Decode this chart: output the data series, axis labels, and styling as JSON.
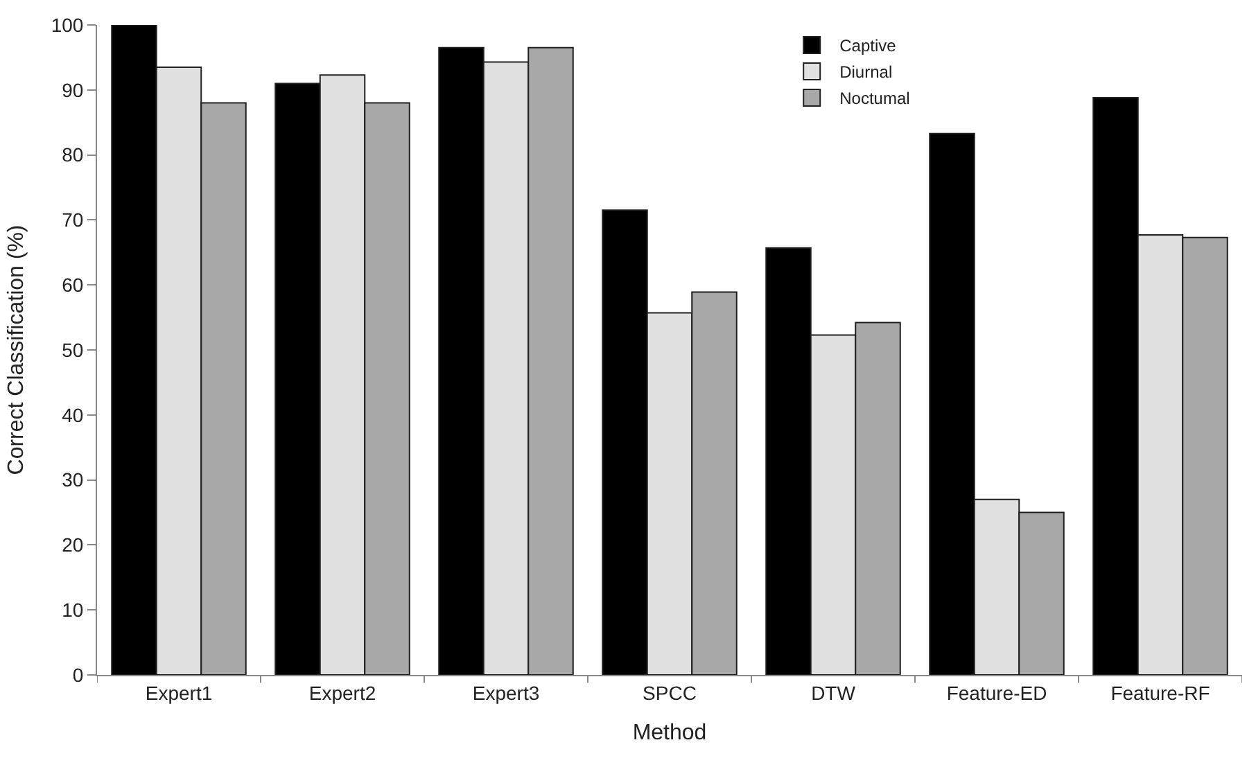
{
  "chart_data": {
    "type": "bar",
    "xlabel": "Method",
    "ylabel": "Correct Classification (%)",
    "categories": [
      "Expert1",
      "Expert2",
      "Expert3",
      "SPCC",
      "DTW",
      "Feature-ED",
      "Feature-RF"
    ],
    "series": [
      {
        "name": "Captive",
        "color": "#000000",
        "values": [
          100,
          91,
          96.5,
          71.5,
          65.7,
          83.3,
          88.8
        ]
      },
      {
        "name": "Diurnal",
        "color": "#e0e0e0",
        "values": [
          93.5,
          92.3,
          94.3,
          55.7,
          52.3,
          27,
          67.7
        ]
      },
      {
        "name": "Noctumal",
        "color": "#a8a8a8",
        "values": [
          88,
          88,
          96.5,
          58.9,
          54.2,
          25,
          67.3
        ]
      }
    ],
    "ylim": [
      0,
      100
    ],
    "yticks": [
      0,
      10,
      20,
      30,
      40,
      50,
      60,
      70,
      80,
      90,
      100
    ],
    "legend": "top right"
  }
}
